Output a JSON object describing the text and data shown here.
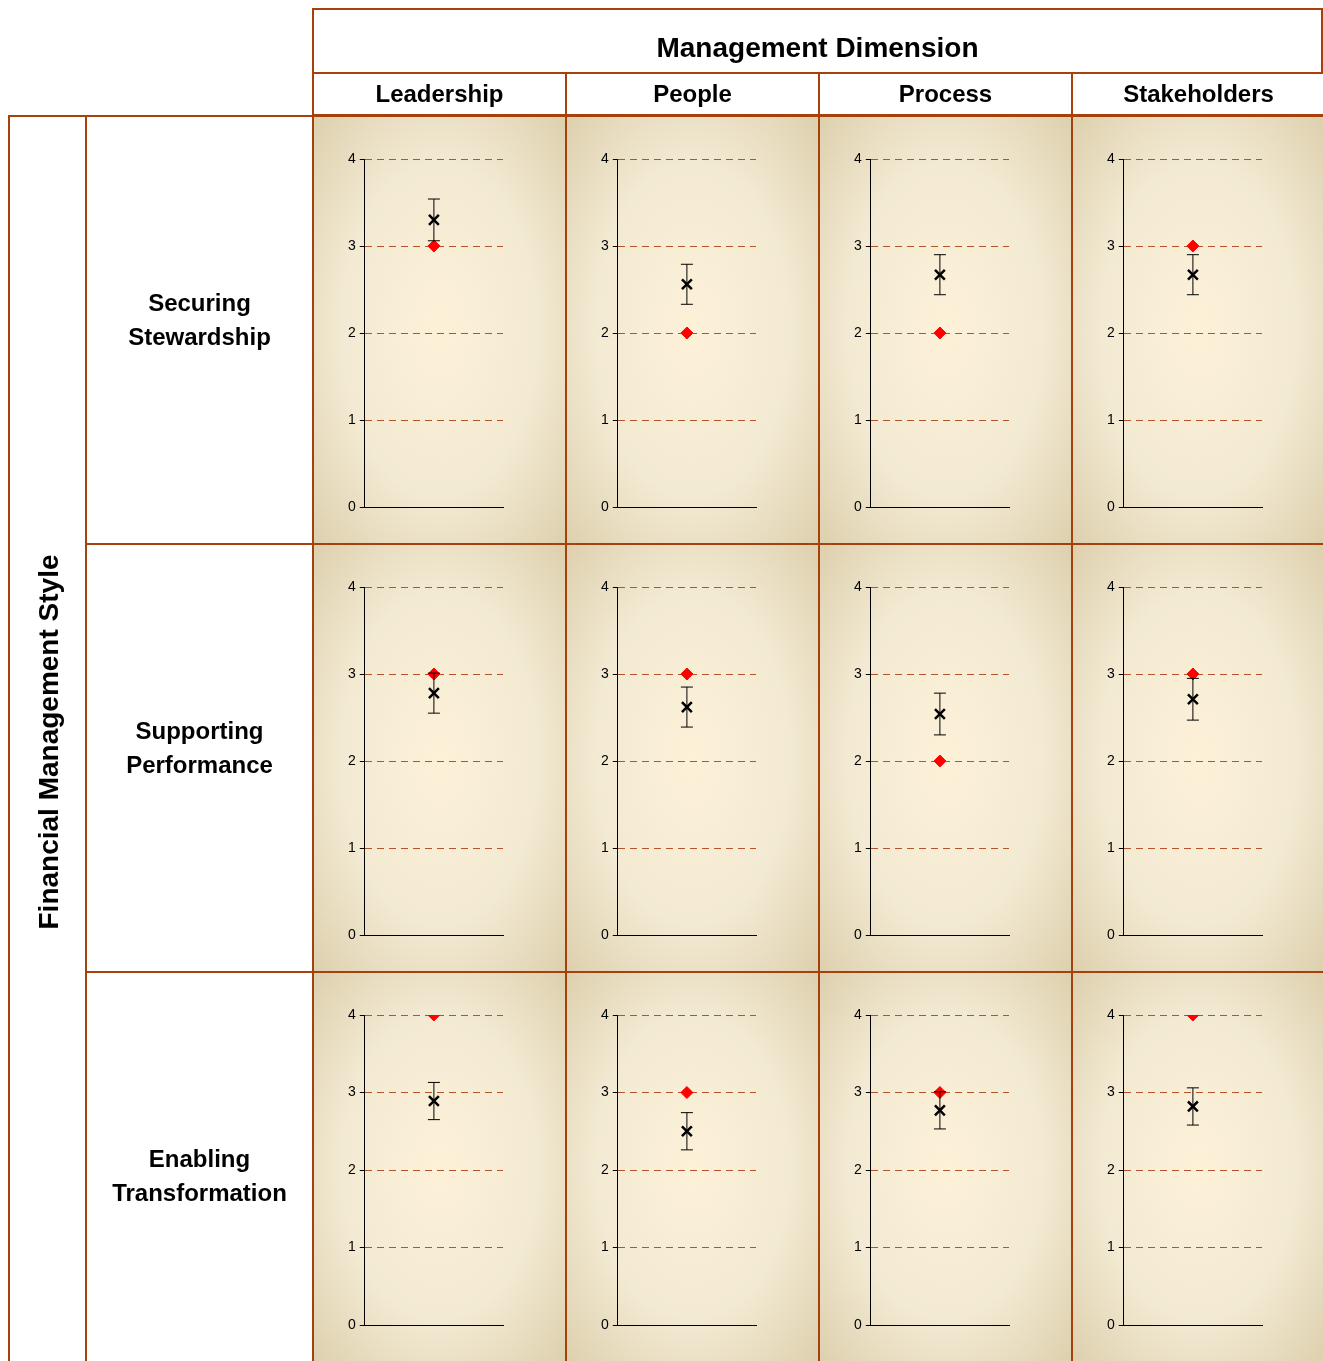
{
  "chart_data": [
    {
      "type": "other",
      "title": "Management Dimension",
      "annotations": [
        "Leadership",
        "People",
        "Process",
        "Stakeholders"
      ]
    },
    {
      "type": "other",
      "title": "Financial Management Style",
      "annotations": [
        "Securing Stewardship",
        "Supporting Performance",
        "Enabling Transformation"
      ]
    },
    {
      "type": "scatter",
      "categories": [
        null
      ],
      "ylim": [
        0,
        4
      ],
      "yticks": [
        0,
        1,
        2,
        3,
        4
      ],
      "grid": "y",
      "tick_labels": "y",
      "series": [
        {
          "marker": "diamond",
          "color": "#ff0000",
          "values": [
            3
          ]
        },
        {
          "marker": "cross",
          "color": "#000000",
          "values": [
            3.3
          ],
          "errors": [
            0.24
          ]
        }
      ]
    },
    {
      "type": "scatter",
      "categories": [
        null
      ],
      "ylim": [
        0,
        4
      ],
      "yticks": [
        0,
        1,
        2,
        3,
        4
      ],
      "grid": "y",
      "tick_labels": "y",
      "series": [
        {
          "marker": "diamond",
          "color": "#ff0000",
          "values": [
            2
          ]
        },
        {
          "marker": "cross",
          "color": "#000000",
          "values": [
            2.56
          ],
          "errors": [
            0.23
          ]
        }
      ]
    },
    {
      "type": "scatter",
      "categories": [
        null
      ],
      "ylim": [
        0,
        4
      ],
      "yticks": [
        0,
        1,
        2,
        3,
        4
      ],
      "grid": "y",
      "tick_labels": "y",
      "series": [
        {
          "marker": "diamond",
          "color": "#ff0000",
          "values": [
            2
          ]
        },
        {
          "marker": "cross",
          "color": "#000000",
          "values": [
            2.67
          ],
          "errors": [
            0.23
          ]
        }
      ]
    },
    {
      "type": "scatter",
      "categories": [
        null
      ],
      "ylim": [
        0,
        4
      ],
      "yticks": [
        0,
        1,
        2,
        3,
        4
      ],
      "grid": "y",
      "tick_labels": "y",
      "series": [
        {
          "marker": "diamond",
          "color": "#ff0000",
          "values": [
            3
          ]
        },
        {
          "marker": "cross",
          "color": "#000000",
          "values": [
            2.67
          ],
          "errors": [
            0.23
          ]
        }
      ]
    },
    {
      "type": "scatter",
      "categories": [
        null
      ],
      "ylim": [
        0,
        4
      ],
      "yticks": [
        0,
        1,
        2,
        3,
        4
      ],
      "grid": "y",
      "tick_labels": "y",
      "series": [
        {
          "marker": "diamond",
          "color": "#ff0000",
          "values": [
            3
          ]
        },
        {
          "marker": "cross",
          "color": "#000000",
          "values": [
            2.78
          ],
          "errors": [
            0.23
          ]
        }
      ]
    },
    {
      "type": "scatter",
      "categories": [
        null
      ],
      "ylim": [
        0,
        4
      ],
      "yticks": [
        0,
        1,
        2,
        3,
        4
      ],
      "grid": "y",
      "tick_labels": "y",
      "series": [
        {
          "marker": "diamond",
          "color": "#ff0000",
          "values": [
            3
          ]
        },
        {
          "marker": "cross",
          "color": "#000000",
          "values": [
            2.62
          ],
          "errors": [
            0.23
          ]
        }
      ]
    },
    {
      "type": "scatter",
      "categories": [
        null
      ],
      "ylim": [
        0,
        4
      ],
      "yticks": [
        0,
        1,
        2,
        3,
        4
      ],
      "grid": "y",
      "tick_labels": "y",
      "series": [
        {
          "marker": "diamond",
          "color": "#ff0000",
          "values": [
            2
          ]
        },
        {
          "marker": "cross",
          "color": "#000000",
          "values": [
            2.54
          ],
          "errors": [
            0.24
          ]
        }
      ]
    },
    {
      "type": "scatter",
      "categories": [
        null
      ],
      "ylim": [
        0,
        4
      ],
      "yticks": [
        0,
        1,
        2,
        3,
        4
      ],
      "grid": "y",
      "tick_labels": "y",
      "series": [
        {
          "marker": "diamond",
          "color": "#ff0000",
          "values": [
            3
          ]
        },
        {
          "marker": "cross",
          "color": "#000000",
          "values": [
            2.71
          ],
          "errors": [
            0.24
          ]
        }
      ]
    },
    {
      "type": "scatter",
      "categories": [
        null
      ],
      "ylim": [
        0,
        4
      ],
      "yticks": [
        0,
        1,
        2,
        3,
        4
      ],
      "grid": "y",
      "tick_labels": "y",
      "series": [
        {
          "marker": "diamond",
          "color": "#ff0000",
          "values": [
            4
          ]
        },
        {
          "marker": "cross",
          "color": "#000000",
          "values": [
            2.89
          ],
          "errors": [
            0.24
          ]
        }
      ]
    },
    {
      "type": "scatter",
      "categories": [
        null
      ],
      "ylim": [
        0,
        4
      ],
      "yticks": [
        0,
        1,
        2,
        3,
        4
      ],
      "grid": "y",
      "tick_labels": "y",
      "series": [
        {
          "marker": "diamond",
          "color": "#ff0000",
          "values": [
            3
          ]
        },
        {
          "marker": "cross",
          "color": "#000000",
          "values": [
            2.5
          ],
          "errors": [
            0.24
          ]
        }
      ]
    },
    {
      "type": "scatter",
      "categories": [
        null
      ],
      "ylim": [
        0,
        4
      ],
      "yticks": [
        0,
        1,
        2,
        3,
        4
      ],
      "grid": "y",
      "tick_labels": "y",
      "series": [
        {
          "marker": "diamond",
          "color": "#ff0000",
          "values": [
            3
          ]
        },
        {
          "marker": "cross",
          "color": "#000000",
          "values": [
            2.77
          ],
          "errors": [
            0.24
          ]
        }
      ]
    },
    {
      "type": "scatter",
      "categories": [
        null
      ],
      "ylim": [
        0,
        4
      ],
      "yticks": [
        0,
        1,
        2,
        3,
        4
      ],
      "grid": "y",
      "tick_labels": "y",
      "series": [
        {
          "marker": "diamond",
          "color": "#ff0000",
          "values": [
            4
          ]
        },
        {
          "marker": "cross",
          "color": "#000000",
          "values": [
            2.82
          ],
          "errors": [
            0.24
          ]
        }
      ]
    }
  ]
}
